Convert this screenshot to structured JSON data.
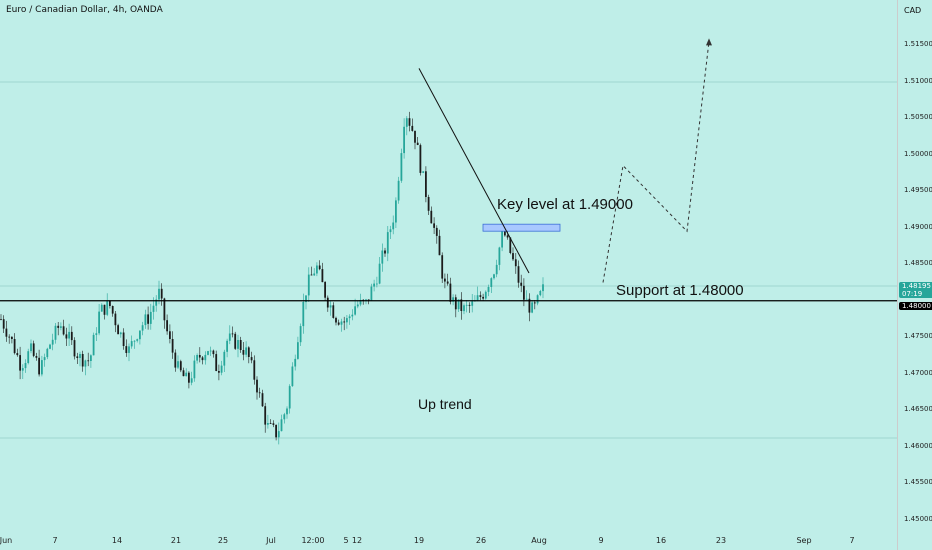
{
  "header": {
    "title": "Euro / Canadian Dollar, 4h, OANDA",
    "currency": "CAD"
  },
  "price_axis": {
    "ticks": [
      "1.51500",
      "1.51000",
      "1.50500",
      "1.50000",
      "1.49500",
      "1.49000",
      "1.48500",
      "1.47500",
      "1.47000",
      "1.46500",
      "1.46000",
      "1.45500",
      "1.45000"
    ],
    "current_price": "1.48195",
    "countdown": "07:19",
    "support_price": "1.48000"
  },
  "time_axis": {
    "ticks": [
      "Jun",
      "7",
      "14",
      "21",
      "25",
      "Jul",
      "12:00",
      "5",
      "12",
      "19",
      "26",
      "Aug",
      "9",
      "16",
      "23",
      "Sep",
      "7"
    ]
  },
  "annotations": {
    "key_level": "Key level at 1.49000",
    "support": "Support at 1.48000",
    "trend": "Up trend"
  },
  "colors": {
    "background": "#bfeee8",
    "bull": "#26a69a",
    "bear": "#1b1b1b",
    "support_line": "#000000",
    "key_box": "#7aa8ff"
  },
  "chart_data": {
    "type": "candlestick",
    "symbol": "EURCAD",
    "interval": "4h",
    "exchange": "OANDA",
    "ylim": [
      1.448,
      1.52
    ],
    "support_level": 1.48,
    "key_level": 1.49,
    "last_price": 1.48195,
    "close_path": [
      1.4775,
      1.4748,
      1.4712,
      1.4732,
      1.4705,
      1.4742,
      1.4768,
      1.4745,
      1.4722,
      1.4718,
      1.4785,
      1.4795,
      1.4758,
      1.4732,
      1.4762,
      1.4778,
      1.4812,
      1.4748,
      1.4705,
      1.4688,
      1.4722,
      1.4735,
      1.4705,
      1.4748,
      1.4742,
      1.4728,
      1.4682,
      1.4628,
      1.4618,
      1.4655,
      1.4745,
      1.4818,
      1.4848,
      1.4805,
      1.4778,
      1.477,
      1.4795,
      1.4795,
      1.4828,
      1.4872,
      1.4925,
      1.5062,
      1.5025,
      1.4955,
      1.4895,
      1.4822,
      1.4795,
      1.4788,
      1.4795,
      1.4812,
      1.4842,
      1.4895,
      1.4852,
      1.4805,
      1.4785,
      1.4815
    ],
    "projection": [
      1.4825,
      1.4985,
      1.4895,
      1.5155
    ],
    "trendline_from": 1.5118,
    "trendline_to": 1.4838
  }
}
